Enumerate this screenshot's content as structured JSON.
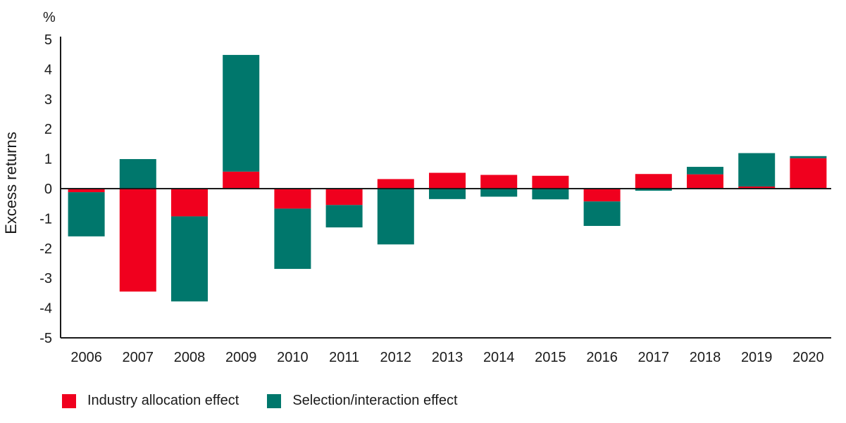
{
  "chart_data": {
    "type": "bar",
    "stacked": true,
    "unit_label": "%",
    "ylabel": "Excess returns",
    "xlabel": "",
    "ylim": [
      -5,
      5
    ],
    "yticks": [
      "5",
      "4",
      "3",
      "2",
      "1",
      "0",
      "-1",
      "-2",
      "-3",
      "-4",
      "-5"
    ],
    "ytick_values": [
      5,
      4,
      3,
      2,
      1,
      0,
      -1,
      -2,
      -3,
      -4,
      -5
    ],
    "categories": [
      "2006",
      "2007",
      "2008",
      "2009",
      "2010",
      "2011",
      "2012",
      "2013",
      "2014",
      "2015",
      "2016",
      "2017",
      "2018",
      "2019",
      "2020"
    ],
    "series": [
      {
        "name": "Industry allocation effect",
        "color": "#f0001e",
        "values": [
          -0.12,
          -3.45,
          -0.93,
          0.57,
          -0.67,
          -0.55,
          0.32,
          0.53,
          0.46,
          0.43,
          -0.43,
          0.49,
          0.48,
          0.07,
          1.02
        ]
      },
      {
        "name": "Selection/interaction effect",
        "color": "#00776c",
        "values": [
          -1.48,
          0.99,
          -2.85,
          3.91,
          -2.02,
          -0.75,
          -1.87,
          -0.35,
          -0.27,
          -0.36,
          -0.82,
          -0.07,
          0.25,
          1.12,
          0.07
        ]
      }
    ],
    "legend_position": "bottom-left",
    "grid": false
  }
}
